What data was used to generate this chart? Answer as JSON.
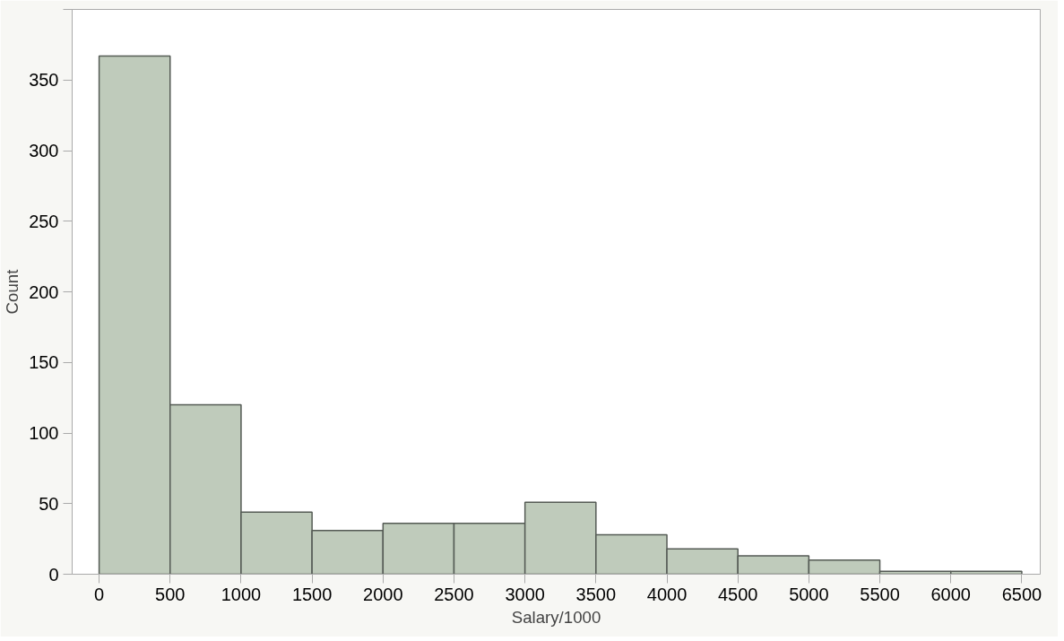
{
  "chart_data": {
    "type": "histogram",
    "xlabel": "Salary/1000",
    "ylabel": "Count",
    "bins": [
      0,
      500,
      1000,
      1500,
      2000,
      2500,
      3000,
      3500,
      4000,
      4500,
      5000,
      5500,
      6000,
      6500
    ],
    "values": [
      367,
      120,
      44,
      31,
      36,
      36,
      51,
      28,
      18,
      13,
      10,
      2,
      2
    ],
    "color": "#bfcbbb",
    "xlim": [
      -190,
      6630
    ],
    "xticks": [
      0,
      500,
      1000,
      1500,
      2000,
      2500,
      3000,
      3500,
      4000,
      4500,
      5000,
      5500,
      6000,
      6500
    ],
    "ylim": [
      0,
      400
    ],
    "yticks": [
      0,
      50,
      100,
      150,
      200,
      250,
      300,
      350,
      {
        "value": 400,
        "label": null
      }
    ],
    "grid": false
  }
}
